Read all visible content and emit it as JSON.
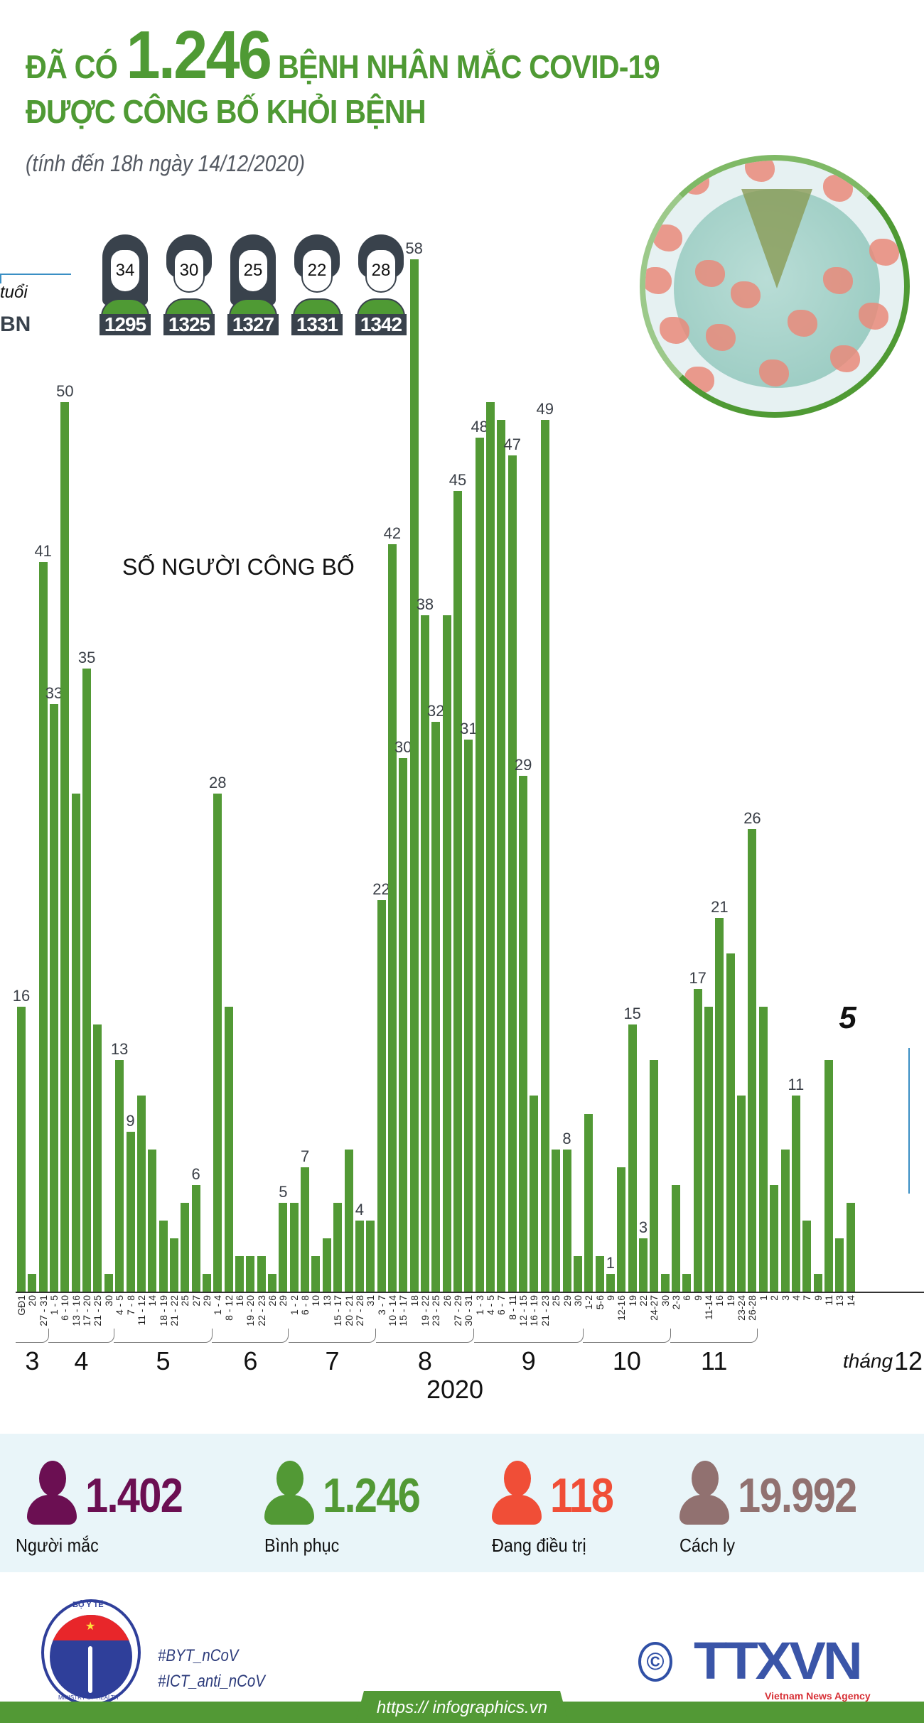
{
  "header": {
    "title_prefix": "ĐÃ CÓ",
    "title_number": "1.246",
    "title_suffix": "BỆNH NHÂN MẮC COVID-19",
    "title_line2": "ĐƯỢC CÔNG BỐ KHỎI BỆNH",
    "subtitle": "(tính đến 18h ngày 14/12/2020)"
  },
  "patients": {
    "bn_label": "BN",
    "age_label": "tuổi",
    "items": [
      {
        "age": "34",
        "id": "1295",
        "gender": "female"
      },
      {
        "age": "30",
        "id": "1325",
        "gender": "male"
      },
      {
        "age": "25",
        "id": "1327",
        "gender": "female"
      },
      {
        "age": "22",
        "id": "1331",
        "gender": "male"
      },
      {
        "age": "28",
        "id": "1342",
        "gender": "male"
      }
    ]
  },
  "chart_data": {
    "type": "bar",
    "title": "SỐ NGƯỜI CÔNG BỐ",
    "xlabel": "2020",
    "ylabel": "",
    "ylim": [
      0,
      60
    ],
    "grid": false,
    "legend": "none",
    "color": "#529935",
    "categories": [
      "GĐ1",
      "20",
      "27 - 31",
      "1 - 5",
      "6 - 10",
      "13 - 16",
      "17 - 20",
      "21 - 25",
      "30",
      "4 - 5",
      "7 - 8",
      "11 - 12",
      "14",
      "18 - 19",
      "21 - 22",
      "25",
      "27",
      "29",
      "1 - 4",
      "8 - 12",
      "16",
      "19 - 20",
      "22 - 23",
      "26",
      "29",
      "1 - 2",
      "6 - 8",
      "10",
      "13",
      "15 - 17",
      "20 - 21",
      "27 - 28",
      "31",
      "3 - 7",
      "10 - 14",
      "15 - 17",
      "18",
      "19 - 22",
      "23 - 25",
      "26",
      "27 - 29",
      "30 - 31",
      "1 - 3",
      "4 - 5",
      "6 - 7",
      "8 - 11",
      "12 - 15",
      "16 - 19",
      "21 - 23",
      "25",
      "29",
      "30",
      "1-2",
      "5-6",
      "9",
      "12-16",
      "19",
      "22",
      "24-27",
      "30",
      "2-3",
      "6",
      "9",
      "11-14",
      "16",
      "19",
      "23-24",
      "26-28",
      "1",
      "2",
      "3",
      "4",
      "7",
      "9",
      "11",
      "13",
      "14"
    ],
    "values": [
      16,
      1,
      41,
      33,
      50,
      28,
      35,
      15,
      1,
      13,
      9,
      11,
      8,
      4,
      3,
      5,
      6,
      1,
      28,
      16,
      2,
      2,
      2,
      1,
      5,
      5,
      7,
      2,
      3,
      5,
      8,
      4,
      4,
      22,
      42,
      30,
      58,
      38,
      32,
      38,
      45,
      31,
      48,
      50,
      49,
      47,
      29,
      11,
      49,
      8,
      8,
      2,
      10,
      2,
      1,
      7,
      15,
      3,
      13,
      1,
      6,
      1,
      17,
      16,
      21,
      19,
      11,
      26,
      16,
      6,
      8,
      11,
      4,
      1,
      13,
      3,
      5
    ],
    "labeled_values": {
      "GĐ1": 16,
      "27 - 31": 41,
      "1 - 5": 33,
      "6 - 10": 50,
      "17 - 20": 35,
      "4 - 5 (May)": 13,
      "7 - 8": 9,
      "27 (May)": 6,
      "1 - 4 (Jun)": 28,
      "29 (Jun)": 5,
      "6 - 8": 7,
      "27 - 28": 4,
      "3 - 7": 22,
      "10 - 14": 42,
      "15 - 17": 30,
      "18": 58,
      "19 - 22": 38,
      "23 - 25": 32,
      "27 - 29": 45,
      "30 - 31": 31,
      "1 - 3": 48,
      "8 - 11": 47,
      "12 - 15": 29,
      "21 - 23": 49,
      "29 (Sep)": 8,
      "9 (Oct)": 1,
      "19 (Oct)": 15,
      "22 (Oct)": 3,
      "9 (Nov)": 17,
      "16 (Nov)": 21,
      "26-28": 26,
      "4 (Dec)": 11,
      "14 (Dec)": 5
    },
    "months": [
      {
        "label": "3",
        "start": 0,
        "end": 2
      },
      {
        "label": "4",
        "start": 3,
        "end": 8
      },
      {
        "label": "5",
        "start": 9,
        "end": 17
      },
      {
        "label": "6",
        "start": 18,
        "end": 24
      },
      {
        "label": "7",
        "start": 25,
        "end": 32
      },
      {
        "label": "8",
        "start": 33,
        "end": 41
      },
      {
        "label": "9",
        "start": 42,
        "end": 51
      },
      {
        "label": "10",
        "start": 52,
        "end": 59
      },
      {
        "label": "11",
        "start": 60,
        "end": 67
      },
      {
        "label": "12",
        "start": 68,
        "end": 76
      }
    ],
    "month_prefix_last": "tháng",
    "highlight": {
      "index": 76,
      "value": "5"
    }
  },
  "stats": [
    {
      "value": "1.402",
      "label": "Người mắc",
      "color": "#6b0f52"
    },
    {
      "value": "1.246",
      "label": "Bình phục",
      "color": "#529935"
    },
    {
      "value": "118",
      "label": "Đang điều trị",
      "color": "#f04e37"
    },
    {
      "value": "19.992",
      "label": "Cách ly",
      "color": "#917170"
    }
  ],
  "footer": {
    "moh_top": "BỘ Y TẾ",
    "moh_bottom": "MINISTRY OF HEALTH",
    "hashtags": [
      "#BYT_nCoV",
      "#ICT_anti_nCoV"
    ],
    "copyright_symbol": "©",
    "agency_logo": "TTXVN",
    "agency_name": "Vietnam News Agency",
    "url": "https:// infographics.vn"
  }
}
